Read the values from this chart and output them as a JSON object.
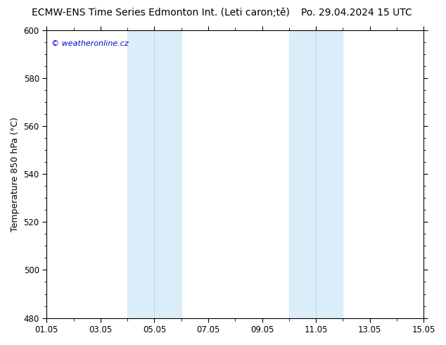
{
  "title_left": "ECMW-ENS Time Series Edmonton Int. (Leti caron;tě)",
  "title_right": "Po. 29.04.2024 15 UTC",
  "ylabel": "Temperature 850 hPa (°C)",
  "watermark": "© weatheronline.cz",
  "watermark_color": "#0000cc",
  "ylim": [
    480,
    600
  ],
  "yticks": [
    480,
    500,
    520,
    540,
    560,
    580,
    600
  ],
  "xmin": 0,
  "xmax": 14,
  "xtick_positions": [
    0,
    2,
    4,
    6,
    8,
    10,
    12,
    14
  ],
  "xtick_labels": [
    "01.05",
    "03.05",
    "05.05",
    "07.05",
    "09.05",
    "11.05",
    "13.05",
    "15.05"
  ],
  "background_color": "#ffffff",
  "plot_bg_color": "#ffffff",
  "shaded_bands": [
    {
      "xmin": 3.0,
      "xmax": 3.5,
      "color": "#ddeef8"
    },
    {
      "xmin": 3.5,
      "xmax": 5.0,
      "color": "#ddeef8"
    },
    {
      "xmin": 9.0,
      "xmax": 9.5,
      "color": "#ddeef8"
    },
    {
      "xmin": 9.5,
      "xmax": 11.0,
      "color": "#ddeef8"
    }
  ],
  "band1_xmin": 3.0,
  "band1_xmax": 5.0,
  "band1_mid": 4.0,
  "band2_xmin": 9.0,
  "band2_xmax": 11.0,
  "band2_mid": 10.0,
  "band_color": "#daedf8",
  "band_divider_color": "#b8d8ee",
  "title_fontsize": 10,
  "tick_fontsize": 8.5,
  "ylabel_fontsize": 9
}
